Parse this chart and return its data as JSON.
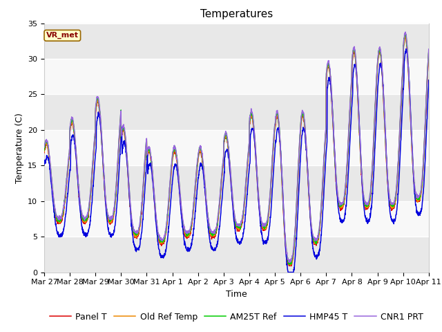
{
  "title": "Temperatures",
  "xlabel": "Time",
  "ylabel": "Temperature (C)",
  "ylim": [
    0,
    35
  ],
  "x_tick_labels": [
    "Mar 27",
    "Mar 28",
    "Mar 29",
    "Mar 30",
    "Mar 31",
    "Apr 1",
    "Apr 2",
    "Apr 3",
    "Apr 4",
    "Apr 5",
    "Apr 6",
    "Apr 7",
    "Apr 8",
    "Apr 9",
    "Apr 10",
    "Apr 11"
  ],
  "x_tick_positions": [
    0,
    1,
    2,
    3,
    4,
    5,
    6,
    7,
    8,
    9,
    10,
    11,
    12,
    13,
    14,
    15
  ],
  "colors": {
    "Panel T": "#dd0000",
    "Old Ref Temp": "#ee8800",
    "AM25T Ref": "#00cc00",
    "HMP45 T": "#0000dd",
    "CNR1 PRT": "#9966dd"
  },
  "line_width": 1.1,
  "bg_color": "#f0f0f0",
  "band_colors": [
    "#e8e8e8",
    "#f8f8f8"
  ],
  "title_fontsize": 11,
  "axis_fontsize": 9,
  "tick_fontsize": 8,
  "legend_fontsize": 9
}
